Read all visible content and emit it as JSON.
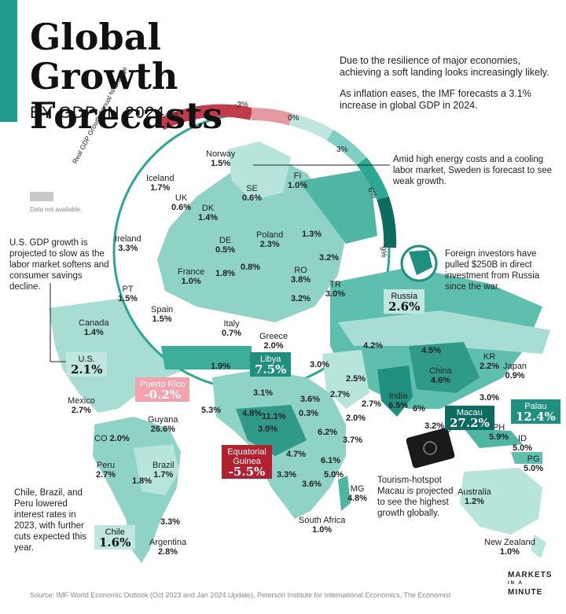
{
  "header": {
    "title_line1": "Global Growth",
    "title_line2": "Forecasts",
    "subtitle": "BY GDP IN 2024"
  },
  "intro": {
    "p1": "Due to the resilience of major economies, achieving a soft landing looks increasingly likely.",
    "p2": "As inflation eases, the IMF forecasts a 3.1% increase in global GDP in 2024."
  },
  "scale": {
    "axis_label": "Real GDP Growth Annual % Change",
    "ticks": [
      "-6%",
      "-3%",
      "0%",
      "3%",
      "6%",
      "9%"
    ],
    "colors": [
      "#c23b4a",
      "#e59aa2",
      "#bfe6df",
      "#7fcfc2",
      "#2aa894",
      "#0e6b60"
    ]
  },
  "legend": {
    "data_na": "Data not available."
  },
  "europe": [
    {
      "name": "Norway",
      "value": "1.5%"
    },
    {
      "name": "Iceland",
      "value": "1.7%"
    },
    {
      "name": "FI",
      "value": "1.0%"
    },
    {
      "name": "SE",
      "value": "0.6%"
    },
    {
      "name": "UK",
      "value": "0.6%"
    },
    {
      "name": "DK",
      "value": "1.4%"
    },
    {
      "name": "Ireland",
      "value": "3.3%"
    },
    {
      "name": "DE",
      "value": "0.5%"
    },
    {
      "name": "Poland",
      "value": "2.3%"
    },
    {
      "name": "",
      "value": "1.3%"
    },
    {
      "name": "France",
      "value": "1.0%"
    },
    {
      "name": "",
      "value": "1.8%"
    },
    {
      "name": "",
      "value": "0.8%"
    },
    {
      "name": "",
      "value": "3.2%"
    },
    {
      "name": "RO",
      "value": "3.8%"
    },
    {
      "name": "PT",
      "value": "1.5%"
    },
    {
      "name": "Spain",
      "value": "1.5%"
    },
    {
      "name": "",
      "value": "3.2%"
    },
    {
      "name": "TR",
      "value": "3.0%"
    },
    {
      "name": "Italy",
      "value": "0.7%"
    },
    {
      "name": "Greece",
      "value": "2.0%"
    },
    {
      "name": "",
      "value": "1.9%"
    }
  ],
  "world": [
    {
      "name": "Canada",
      "value": "1.4%"
    },
    {
      "name": "Mexico",
      "value": "2.7%"
    },
    {
      "name": "Guyana",
      "value": "26.6%"
    },
    {
      "name": "CO",
      "value": "2.0%"
    },
    {
      "name": "Peru",
      "value": "2.7%"
    },
    {
      "name": "Brazil",
      "value": "1.7%"
    },
    {
      "name": "",
      "value": "1.8%"
    },
    {
      "name": "",
      "value": "3.3%"
    },
    {
      "name": "Argentina",
      "value": "2.8%"
    },
    {
      "name": "",
      "value": "4.2%"
    },
    {
      "name": "",
      "value": "4.5%"
    },
    {
      "name": "KR",
      "value": "2.2%"
    },
    {
      "name": "Japan",
      "value": "0.9%"
    },
    {
      "name": "China",
      "value": "4.6%"
    },
    {
      "name": "",
      "value": "3.0%"
    },
    {
      "name": "",
      "value": "2.5%"
    },
    {
      "name": "",
      "value": "2.7%"
    },
    {
      "name": "",
      "value": "2.7%"
    },
    {
      "name": "India",
      "value": "6.5%"
    },
    {
      "name": "",
      "value": "6%"
    },
    {
      "name": "",
      "value": "3.0%"
    },
    {
      "name": "",
      "value": "2.0%"
    },
    {
      "name": "",
      "value": "3.1%"
    },
    {
      "name": "",
      "value": "3.6%"
    },
    {
      "name": "",
      "value": "5.3%"
    },
    {
      "name": "",
      "value": "4.8%"
    },
    {
      "name": "",
      "value": "11.1%"
    },
    {
      "name": "",
      "value": "0.3%"
    },
    {
      "name": "",
      "value": "3.0%"
    },
    {
      "name": "",
      "value": "6.2%"
    },
    {
      "name": "",
      "value": "3.7%"
    },
    {
      "name": "",
      "value": "4.7%"
    },
    {
      "name": "",
      "value": "6.1%"
    },
    {
      "name": "",
      "value": "3.3%"
    },
    {
      "name": "",
      "value": "3.6%"
    },
    {
      "name": "",
      "value": "5.0%"
    },
    {
      "name": "MG",
      "value": "4.8%"
    },
    {
      "name": "South Africa",
      "value": "1.0%"
    },
    {
      "name": "PH",
      "value": "5.9%"
    },
    {
      "name": "",
      "value": "3.2%"
    },
    {
      "name": "ID",
      "value": "5.0%"
    },
    {
      "name": "PG",
      "value": "5.0%"
    },
    {
      "name": "Australia",
      "value": "1.2%"
    },
    {
      "name": "New Zealand",
      "value": "1.0%"
    }
  ],
  "badges": {
    "us": {
      "name": "U.S.",
      "value": "2.1%"
    },
    "russia": {
      "name": "Russia",
      "value": "2.6%"
    },
    "libya": {
      "name": "Libya",
      "value": "7.5%"
    },
    "puerto_rico": {
      "name": "Puerto Rico",
      "value": "-0.2%"
    },
    "eq_guinea": {
      "name": "Equatorial Guinea",
      "value": "-5.5%"
    },
    "macau": {
      "name": "Macau",
      "value": "27.2%"
    },
    "palau": {
      "name": "Palau",
      "value": "12.4%"
    },
    "chile": {
      "name": "Chile",
      "value": "1.6%"
    }
  },
  "notes": {
    "sweden": "Amid high energy costs and a cooling labor market, Sweden is forecast to see weak growth.",
    "russia": "Foreign investors have pulled $250B in direct investment from Russia since the war.",
    "us": "U.S. GDP growth is projected to slow as the labor market softens and consumer savings decline.",
    "latam": "Chile, Brazil, and Peru lowered interest rates in 2023, with further cuts expected this year.",
    "macau": "Tourism-hotspot Macau is projected to see the highest growth globally."
  },
  "footer": {
    "source": "Source: IMF World Economic Outlook (Oct 2023 and Jan 2024 Update), Peterson Institute for International Economics, The Economist",
    "logo_top": "MARKETS",
    "logo_mid": "IN A",
    "logo_bottom": "MINUTE"
  },
  "colors": {
    "teal_light": "#a8ddd3",
    "teal_mid": "#5fbfae",
    "teal_dark": "#1f8f7f",
    "teal_darkest": "#0e6b60",
    "red": "#b3202f",
    "pink": "#f4a3ad"
  }
}
